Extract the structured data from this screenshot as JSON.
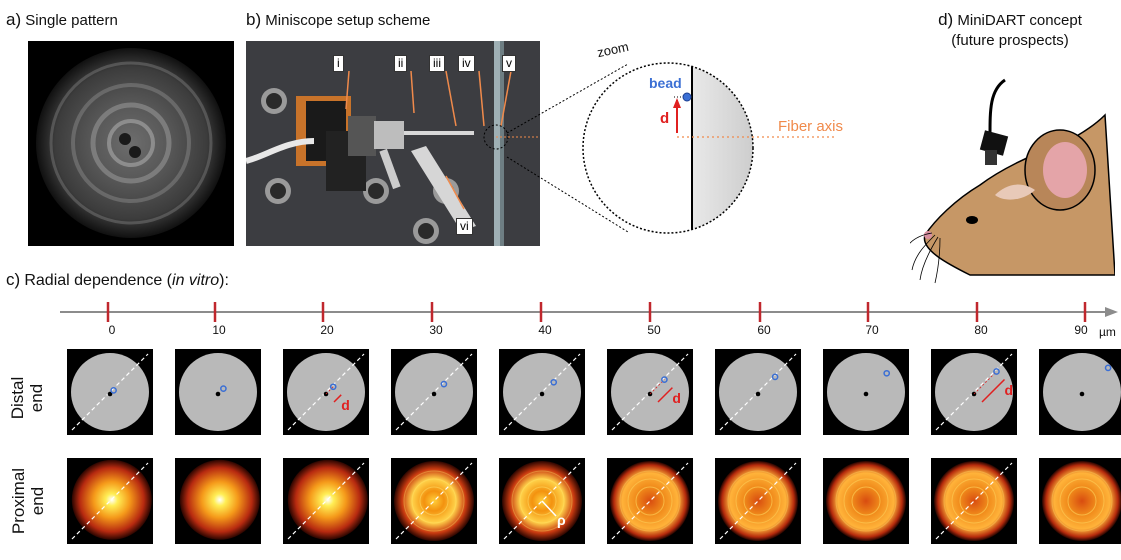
{
  "panel_a": {
    "letter": "a)",
    "title": "Single pattern"
  },
  "panel_b": {
    "letter": "b)",
    "title": "Miniscope setup scheme",
    "labels": [
      "i",
      "ii",
      "iii",
      "iv",
      "v",
      "vi"
    ],
    "zoom_label": "zoom",
    "bead_label": "bead",
    "d_label": "d",
    "fiber_axis_label": "Fiber axis"
  },
  "panel_c": {
    "letter": "c)",
    "title_prefix": "Radial dependence (",
    "title_italic": "in vitro",
    "title_suffix": "):",
    "unit": "µm",
    "ticks": [
      "0",
      "10",
      "20",
      "30",
      "40",
      "50",
      "60",
      "70",
      "80",
      "90"
    ],
    "row_distal": [
      "Distal",
      "end"
    ],
    "row_proximal": [
      "Proximal",
      "end"
    ],
    "d_label": "d",
    "rho_label": "ρ"
  },
  "panel_d": {
    "letter": "d)",
    "title_line1": "MiniDART concept",
    "title_line2": "(future prospects)"
  },
  "colors": {
    "axis_tick": "#c0272d",
    "axis_line": "#8c8c8c",
    "bead_blue": "#3b6fd4",
    "annot_red": "#e02020",
    "fiber_axis": "#f08a4b",
    "disc_gray": "#b9b9b9"
  }
}
